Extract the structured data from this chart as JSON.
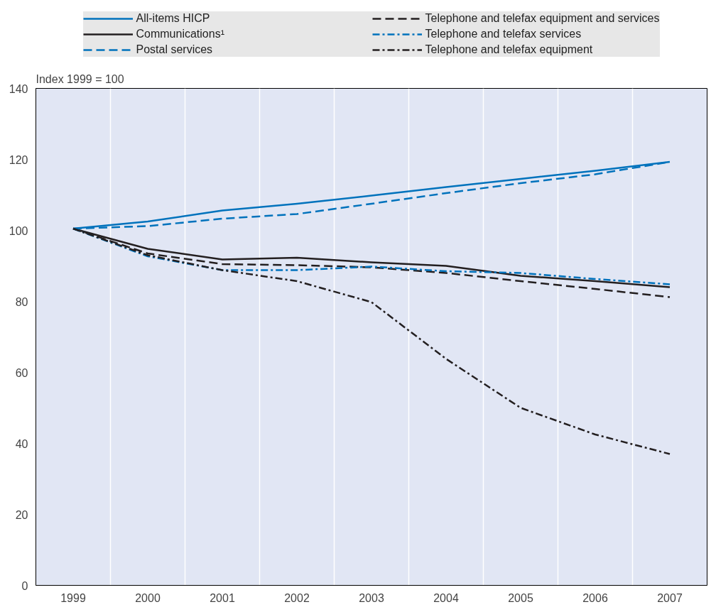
{
  "chart_data": {
    "type": "line",
    "ylabel": "Index 1999 = 100",
    "categories": [
      "1999",
      "2000",
      "2001",
      "2002",
      "2003",
      "2004",
      "2005",
      "2006",
      "2007"
    ],
    "ylim": [
      0,
      140
    ],
    "yticks": [
      0,
      20,
      40,
      60,
      80,
      100,
      120,
      140
    ],
    "grid": true,
    "legend": "top",
    "marker": "none",
    "series": [
      {
        "name": "All-items HICP",
        "color": "#0072bc",
        "line_style": "solid",
        "values": [
          100.5,
          102.5,
          105.6,
          107.5,
          109.8,
          112.2,
          114.5,
          116.8,
          119.3
        ]
      },
      {
        "name": "Communications¹",
        "color": "#231f20",
        "line_style": "solid",
        "values": [
          100.5,
          94.8,
          91.8,
          92.3,
          91,
          90,
          87.2,
          85.7,
          84
        ]
      },
      {
        "name": "Postal services",
        "color": "#0072bc",
        "line_style": "dashed",
        "values": [
          100.5,
          101.2,
          103.3,
          104.6,
          107.5,
          110.5,
          113.3,
          115.8,
          119.3
        ]
      },
      {
        "name": "Telephone and telefax equipment and services",
        "color": "#231f20",
        "line_style": "dashed",
        "values": [
          100.5,
          93.5,
          90.5,
          90.2,
          89.6,
          88,
          85.7,
          83.5,
          81.2
        ]
      },
      {
        "name": "Telephone and telefax services",
        "color": "#0072bc",
        "line_style": "dashdot",
        "values": [
          100.5,
          92.7,
          88.8,
          88.8,
          89.8,
          88.5,
          88,
          86.3,
          84.8
        ]
      },
      {
        "name": "Telephone and telefax equipment",
        "color": "#231f20",
        "line_style": "dashdot",
        "values": [
          100.5,
          93,
          88.8,
          85.7,
          79.8,
          63.8,
          50,
          42.5,
          37
        ]
      }
    ]
  }
}
